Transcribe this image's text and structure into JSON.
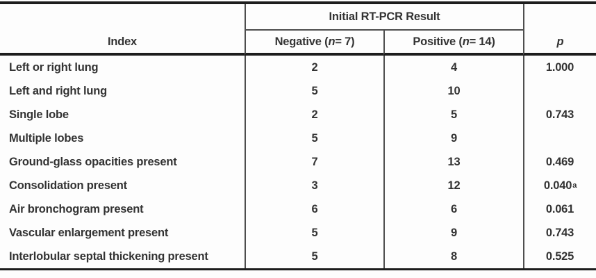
{
  "table": {
    "spanner_label": "Initial RT-PCR Result",
    "header": {
      "index": "Index",
      "negative": {
        "prefix": "Negative (",
        "n": "n",
        "suffix": " = 7)"
      },
      "positive": {
        "prefix": "Positive (",
        "n": "n",
        "suffix": " = 14)"
      },
      "p": "p"
    },
    "rows": [
      {
        "label": "Left or right lung",
        "negative": "2",
        "positive": "4",
        "p": "1.000",
        "p_sup": ""
      },
      {
        "label": "Left and right lung",
        "negative": "5",
        "positive": "10",
        "p": "",
        "p_sup": ""
      },
      {
        "label": "Single lobe",
        "negative": "2",
        "positive": "5",
        "p": "0.743",
        "p_sup": ""
      },
      {
        "label": "Multiple lobes",
        "negative": "5",
        "positive": "9",
        "p": "",
        "p_sup": ""
      },
      {
        "label": "Ground-glass opacities present",
        "negative": "7",
        "positive": "13",
        "p": "0.469",
        "p_sup": ""
      },
      {
        "label": "Consolidation present",
        "negative": "3",
        "positive": "12",
        "p": "0.040",
        "p_sup": "a"
      },
      {
        "label": "Air bronchogram present",
        "negative": "6",
        "positive": "6",
        "p": "0.061",
        "p_sup": ""
      },
      {
        "label": "Vascular enlargement present",
        "negative": "5",
        "positive": "9",
        "p": "0.743",
        "p_sup": ""
      },
      {
        "label": "Interlobular septal thickening present",
        "negative": "5",
        "positive": "8",
        "p": "0.525",
        "p_sup": ""
      }
    ],
    "colors": {
      "rule_heavy": "#1d1d1d",
      "rule_light": "#4e4e4e",
      "text": "#333333",
      "background": "#fdfdfd"
    }
  }
}
